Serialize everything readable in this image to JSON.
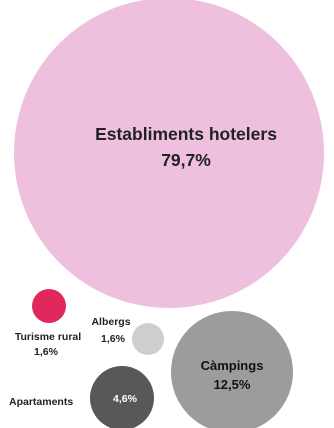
{
  "chart_data": {
    "type": "bubble",
    "series": [
      {
        "name": "Establiments hotelers",
        "value": 79.7,
        "value_label": "79,7%",
        "color": "#eec0dd",
        "label_color": "#222222"
      },
      {
        "name": "Càmpings",
        "value": 12.5,
        "value_label": "12,5%",
        "color": "#9c9c9c",
        "label_color": "#111111"
      },
      {
        "name": "Apartaments",
        "value": 4.6,
        "value_label": "4,6%",
        "color": "#585858",
        "label_color": "#ffffff"
      },
      {
        "name": "Turisme rural",
        "value": 1.6,
        "value_label": "1,6%",
        "color": "#e0285d",
        "label_color": "#222222"
      },
      {
        "name": "Albergs",
        "value": 1.6,
        "value_label": "1,6%",
        "color": "#cecece",
        "label_color": "#222222"
      }
    ]
  }
}
